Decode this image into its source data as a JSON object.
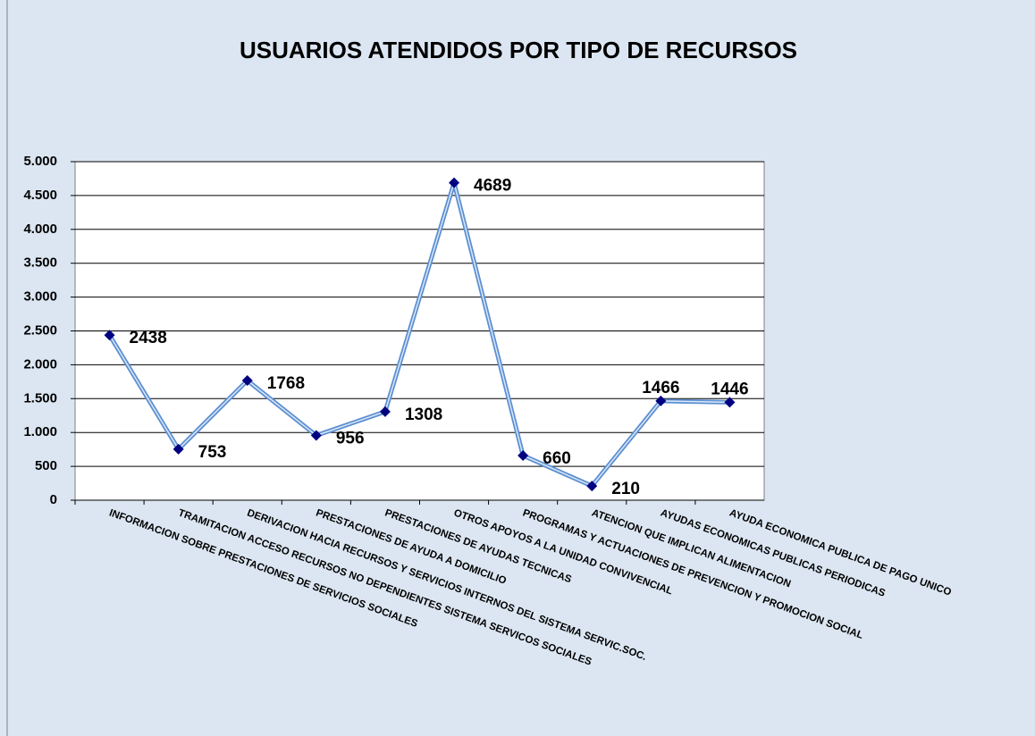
{
  "chart_data": {
    "type": "line",
    "title": "USUARIOS ATENDIDOS POR TIPO DE RECURSOS",
    "categories": [
      "INFORMACION SOBRE PRESTACIONES DE SERVICIOS SOCIALES",
      "TRAMITACION ACCESO RECURSOS NO DEPENDIENTES SISTEMA SERVICOS SOCIALES",
      "DERIVACION HACIA RECURSOS Y SERVICIOS INTERNOS DEL SISTEMA SERVIC.SOC.",
      "PRESTACIONES DE AYUDA A DOMICILIO",
      "PRESTACIONES DE AYUDAS TECNICAS",
      "OTROS APOYOS A LA UNIDAD CONVIVENCIAL",
      "PROGRAMAS Y ACTUACIONES DE PREVENCION Y PROMOCION SOCIAL",
      "ATENCION QUE IMPLICAN ALIMENTACION",
      "AYUDAS ECONOMICAS PUBLICAS PERIODICAS",
      "AYUDA ECONOMICA PUBLICA DE PAGO UNICO"
    ],
    "values": [
      2438,
      753,
      1768,
      956,
      1308,
      4689,
      660,
      210,
      1466,
      1446
    ],
    "color": "#5b8fd1",
    "marker_color": "#000080",
    "ylim": [
      0,
      5000
    ],
    "yticks": [
      0,
      500,
      {
        "value": 1000,
        "label": "1.000"
      },
      {
        "value": 1500,
        "label": "1.500"
      },
      {
        "value": 2000,
        "label": "2.000"
      },
      {
        "value": 2500,
        "label": "2.500"
      },
      {
        "value": 3000,
        "label": "3.000"
      },
      {
        "value": 3500,
        "label": "3.500"
      },
      {
        "value": 4000,
        "label": "4.000"
      },
      {
        "value": 4500,
        "label": "4.500"
      },
      {
        "value": 5000,
        "label": "5.000"
      }
    ],
    "grid": true
  }
}
